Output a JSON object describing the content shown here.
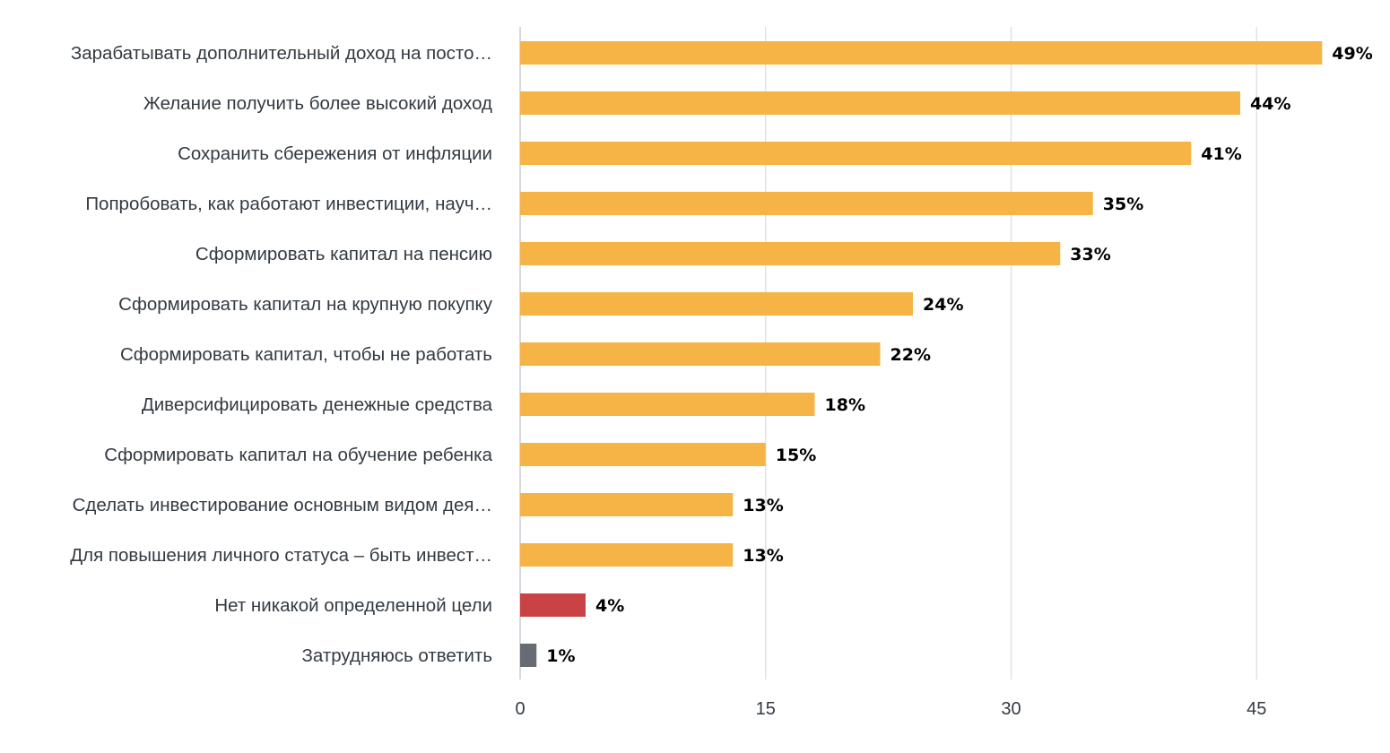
{
  "chart_data": {
    "type": "bar",
    "orientation": "horizontal",
    "title": "",
    "xlabel": "",
    "ylabel": "",
    "xlim": [
      0,
      49
    ],
    "ticks": [
      0,
      15,
      30,
      45
    ],
    "grid": true,
    "value_suffix": "%",
    "categories": [
      "Зарабатывать дополнительный доход на посто…",
      "Желание получить более высокий доход",
      "Сохранить сбережения от инфляции",
      "Попробовать, как работают инвестиции, науч…",
      "Сформировать капитал на пенсию",
      "Сформировать капитал на крупную покупку",
      "Сформировать капитал, чтобы не работать",
      "Диверсифицировать денежные средства",
      "Сформировать капитал на обучение ребенка",
      "Сделать инвестирование основным видом дея…",
      "Для повышения личного статуса – быть инвест…",
      "Нет никакой определенной цели",
      "Затрудняюсь ответить"
    ],
    "values": [
      49,
      44,
      41,
      35,
      33,
      24,
      22,
      18,
      15,
      13,
      13,
      4,
      1
    ],
    "value_labels": [
      "49%",
      "44%",
      "41%",
      "35%",
      "33%",
      "24%",
      "22%",
      "18%",
      "15%",
      "13%",
      "13%",
      "4%",
      "1%"
    ],
    "colors": [
      "#f5b445",
      "#f5b445",
      "#f5b445",
      "#f5b445",
      "#f5b445",
      "#f5b445",
      "#f5b445",
      "#f5b445",
      "#f5b445",
      "#f5b445",
      "#f5b445",
      "#c94345",
      "#666b74"
    ]
  }
}
